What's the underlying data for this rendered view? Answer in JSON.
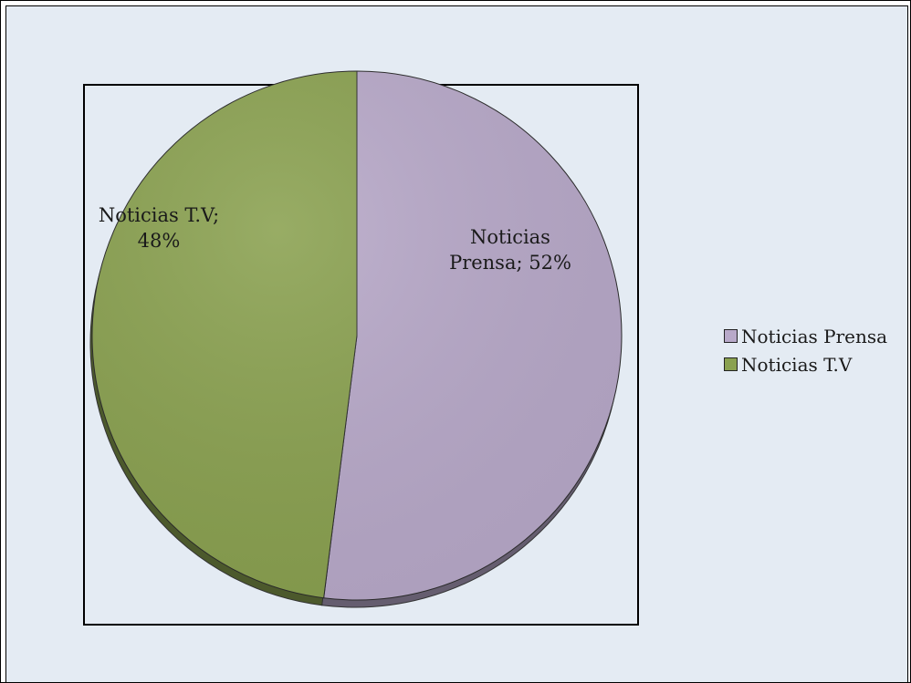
{
  "chart_data": {
    "type": "pie",
    "title": "",
    "series": [
      {
        "name": "",
        "categories": [
          "Noticias Prensa",
          "Noticias T.V"
        ],
        "values": [
          52,
          48
        ],
        "unit": "%"
      }
    ],
    "slice_labels": [
      [
        "Noticias",
        "Prensa; 52%"
      ],
      [
        "Noticias T.V;",
        "48%"
      ]
    ],
    "colors": [
      "#b8a9c9",
      "#8aa150"
    ],
    "legend": {
      "position": "right",
      "entries": [
        "Noticias Prensa",
        "Noticias T.V"
      ]
    }
  }
}
